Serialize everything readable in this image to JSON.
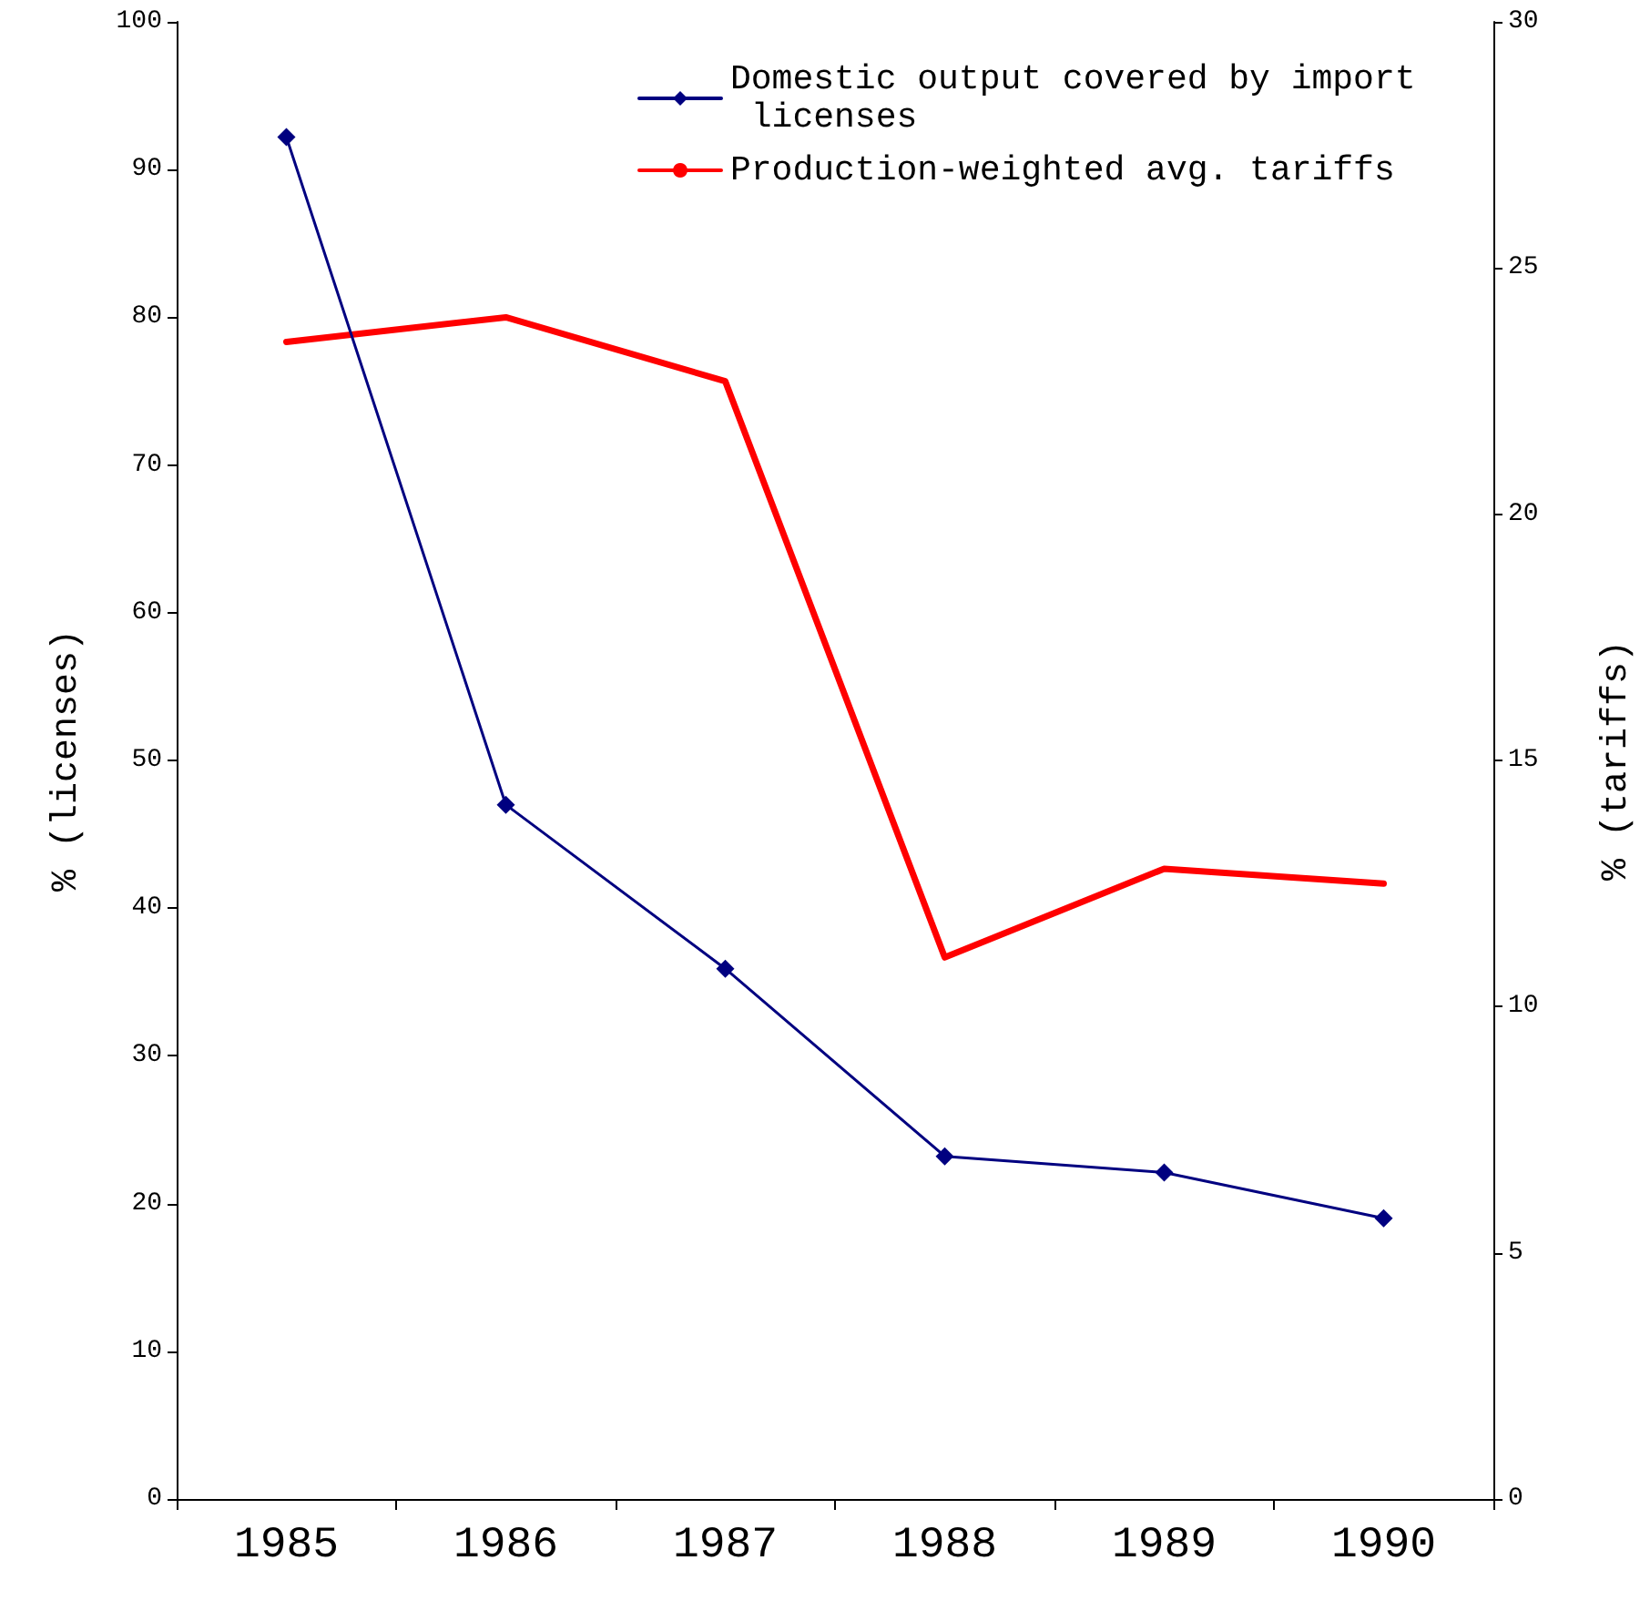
{
  "chart_data": {
    "type": "line",
    "categories": [
      "1985",
      "1986",
      "1987",
      "1988",
      "1989",
      "1990"
    ],
    "ylabel": "% (licenses)",
    "y2label": "% (tariffs)",
    "ylim": [
      0,
      100
    ],
    "yticks": [
      0,
      10,
      20,
      30,
      40,
      50,
      60,
      70,
      80,
      90,
      100
    ],
    "y2lim": [
      0,
      30
    ],
    "y2ticks": [
      0,
      5,
      10,
      15,
      20,
      25,
      30
    ],
    "grid": false,
    "legend": "top right",
    "series": [
      {
        "name": "Domestic output covered by import licenses",
        "color": "#000080",
        "marker": "diamond",
        "values": [
          92.2,
          47.0,
          35.9,
          23.2,
          22.1,
          19.0
        ]
      },
      {
        "name": "Production-weighted avg. tariffs",
        "color": "#ff0000",
        "marker": "none",
        "axis": "y2",
        "values": [
          23.5,
          24.0,
          22.7,
          11.0,
          12.8,
          12.5
        ]
      }
    ]
  }
}
